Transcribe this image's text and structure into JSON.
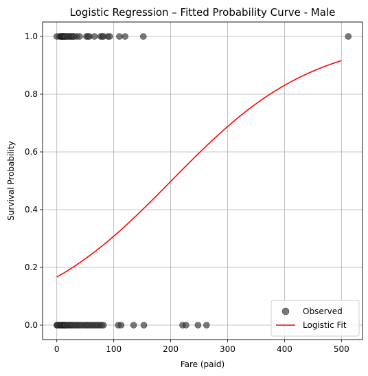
{
  "chart_data": {
    "type": "scatter",
    "title": "Logistic Regression – Fitted Probability Curve - Male",
    "xlabel": "Fare (paid)",
    "ylabel": "Survival Probability",
    "xlim": [
      -25,
      537
    ],
    "ylim": [
      -0.05,
      1.05
    ],
    "x_ticks": [
      0,
      100,
      200,
      300,
      400,
      500
    ],
    "y_ticks": [
      0.0,
      0.2,
      0.4,
      0.6,
      0.8,
      1.0
    ],
    "x_tick_labels": [
      "0",
      "100",
      "200",
      "300",
      "400",
      "500"
    ],
    "y_tick_labels": [
      "0.0",
      "0.2",
      "0.4",
      "0.6",
      "0.8",
      "1.0"
    ],
    "grid": true,
    "legend_position": "lower-right",
    "series": [
      {
        "name": "Observed",
        "kind": "scatter",
        "color": "#404040",
        "points": [
          {
            "x": 0,
            "y": 1
          },
          {
            "x": 5,
            "y": 1
          },
          {
            "x": 7,
            "y": 1
          },
          {
            "x": 8,
            "y": 1
          },
          {
            "x": 9,
            "y": 1
          },
          {
            "x": 10,
            "y": 1
          },
          {
            "x": 11,
            "y": 1
          },
          {
            "x": 12,
            "y": 1
          },
          {
            "x": 13,
            "y": 1
          },
          {
            "x": 14,
            "y": 1
          },
          {
            "x": 15,
            "y": 1
          },
          {
            "x": 16,
            "y": 1
          },
          {
            "x": 18,
            "y": 1
          },
          {
            "x": 20,
            "y": 1
          },
          {
            "x": 22,
            "y": 1
          },
          {
            "x": 24,
            "y": 1
          },
          {
            "x": 26,
            "y": 1
          },
          {
            "x": 27,
            "y": 1
          },
          {
            "x": 29,
            "y": 1
          },
          {
            "x": 30,
            "y": 1
          },
          {
            "x": 35,
            "y": 1
          },
          {
            "x": 40,
            "y": 1
          },
          {
            "x": 52,
            "y": 1
          },
          {
            "x": 55,
            "y": 1
          },
          {
            "x": 57,
            "y": 1
          },
          {
            "x": 66,
            "y": 1
          },
          {
            "x": 77,
            "y": 1
          },
          {
            "x": 80,
            "y": 1
          },
          {
            "x": 82,
            "y": 1
          },
          {
            "x": 90,
            "y": 1
          },
          {
            "x": 93,
            "y": 1
          },
          {
            "x": 110,
            "y": 1
          },
          {
            "x": 120,
            "y": 1
          },
          {
            "x": 152,
            "y": 1
          },
          {
            "x": 512,
            "y": 1
          },
          {
            "x": 0,
            "y": 0
          },
          {
            "x": 1,
            "y": 0
          },
          {
            "x": 3,
            "y": 0
          },
          {
            "x": 5,
            "y": 0
          },
          {
            "x": 7,
            "y": 0
          },
          {
            "x": 8,
            "y": 0
          },
          {
            "x": 9,
            "y": 0
          },
          {
            "x": 10,
            "y": 0
          },
          {
            "x": 12,
            "y": 0
          },
          {
            "x": 13,
            "y": 0
          },
          {
            "x": 14,
            "y": 0
          },
          {
            "x": 15,
            "y": 0
          },
          {
            "x": 16,
            "y": 0
          },
          {
            "x": 18,
            "y": 0
          },
          {
            "x": 20,
            "y": 0
          },
          {
            "x": 22,
            "y": 0
          },
          {
            "x": 24,
            "y": 0
          },
          {
            "x": 26,
            "y": 0
          },
          {
            "x": 28,
            "y": 0
          },
          {
            "x": 30,
            "y": 0
          },
          {
            "x": 33,
            "y": 0
          },
          {
            "x": 35,
            "y": 0
          },
          {
            "x": 38,
            "y": 0
          },
          {
            "x": 40,
            "y": 0
          },
          {
            "x": 43,
            "y": 0
          },
          {
            "x": 46,
            "y": 0
          },
          {
            "x": 50,
            "y": 0
          },
          {
            "x": 52,
            "y": 0
          },
          {
            "x": 55,
            "y": 0
          },
          {
            "x": 58,
            "y": 0
          },
          {
            "x": 61,
            "y": 0
          },
          {
            "x": 64,
            "y": 0
          },
          {
            "x": 67,
            "y": 0
          },
          {
            "x": 70,
            "y": 0
          },
          {
            "x": 73,
            "y": 0
          },
          {
            "x": 76,
            "y": 0
          },
          {
            "x": 79,
            "y": 0
          },
          {
            "x": 82,
            "y": 0
          },
          {
            "x": 108,
            "y": 0
          },
          {
            "x": 113,
            "y": 0
          },
          {
            "x": 135,
            "y": 0
          },
          {
            "x": 153,
            "y": 0
          },
          {
            "x": 221,
            "y": 0
          },
          {
            "x": 227,
            "y": 0
          },
          {
            "x": 248,
            "y": 0
          },
          {
            "x": 263,
            "y": 0
          }
        ]
      },
      {
        "name": "Logistic Fit",
        "kind": "line",
        "color": "#ff0000",
        "x_range": [
          0,
          500
        ],
        "intercept": -1.61,
        "slope": 0.008
      }
    ]
  }
}
